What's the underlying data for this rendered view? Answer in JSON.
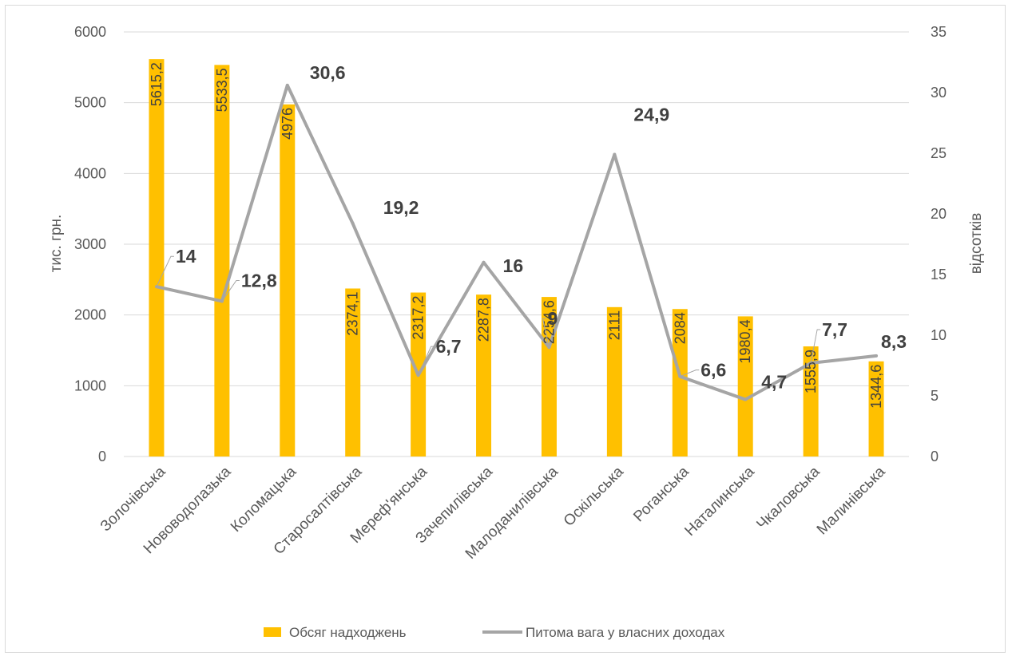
{
  "chart_data": {
    "type": "bar+line",
    "categories": [
      "Золочівська",
      "Нововодолазька",
      "Коломацька",
      "Старосалтівська",
      "Мереф'янська",
      "Зачепилівська",
      "Малоданилівська",
      "Оскільська",
      "Роганська",
      "Наталинська",
      "Чкаловська",
      "Малинівська"
    ],
    "series": [
      {
        "name": "Обсяг надходжень",
        "type": "bar",
        "axis": "left",
        "color": "#ffc000",
        "values": [
          5615.2,
          5533.5,
          4976,
          2374.1,
          2317.2,
          2287.8,
          2254.6,
          2111,
          2084,
          1980.4,
          1555.9,
          1344.6
        ],
        "labels": [
          "5615,2",
          "5533,5",
          "4976",
          "2374,1",
          "2317,2",
          "2287,8",
          "2254,6",
          "2111",
          "2084",
          "1980,4",
          "1555,9",
          "1344,6"
        ]
      },
      {
        "name": "Питома вага у власних доходах",
        "type": "line",
        "axis": "right",
        "color": "#a5a5a5",
        "values": [
          14,
          12.8,
          30.6,
          19.2,
          6.7,
          16,
          9,
          24.9,
          6.6,
          4.7,
          7.7,
          8.3
        ],
        "labels": [
          "14",
          "12,8",
          "30,6",
          "19,2",
          "6,7",
          "16",
          "9",
          "24,9",
          "6,6",
          "4,7",
          "7,7",
          "8,3"
        ]
      }
    ],
    "ylabel": "тис. грн.",
    "y2label": "відсотків",
    "ylim": [
      0,
      6000
    ],
    "y2lim": [
      0,
      35
    ],
    "yticks": [
      0,
      1000,
      2000,
      3000,
      4000,
      5000,
      6000
    ],
    "y2ticks": [
      0,
      5,
      10,
      15,
      20,
      25,
      30,
      35
    ],
    "grid": true,
    "legend": "bottom"
  }
}
